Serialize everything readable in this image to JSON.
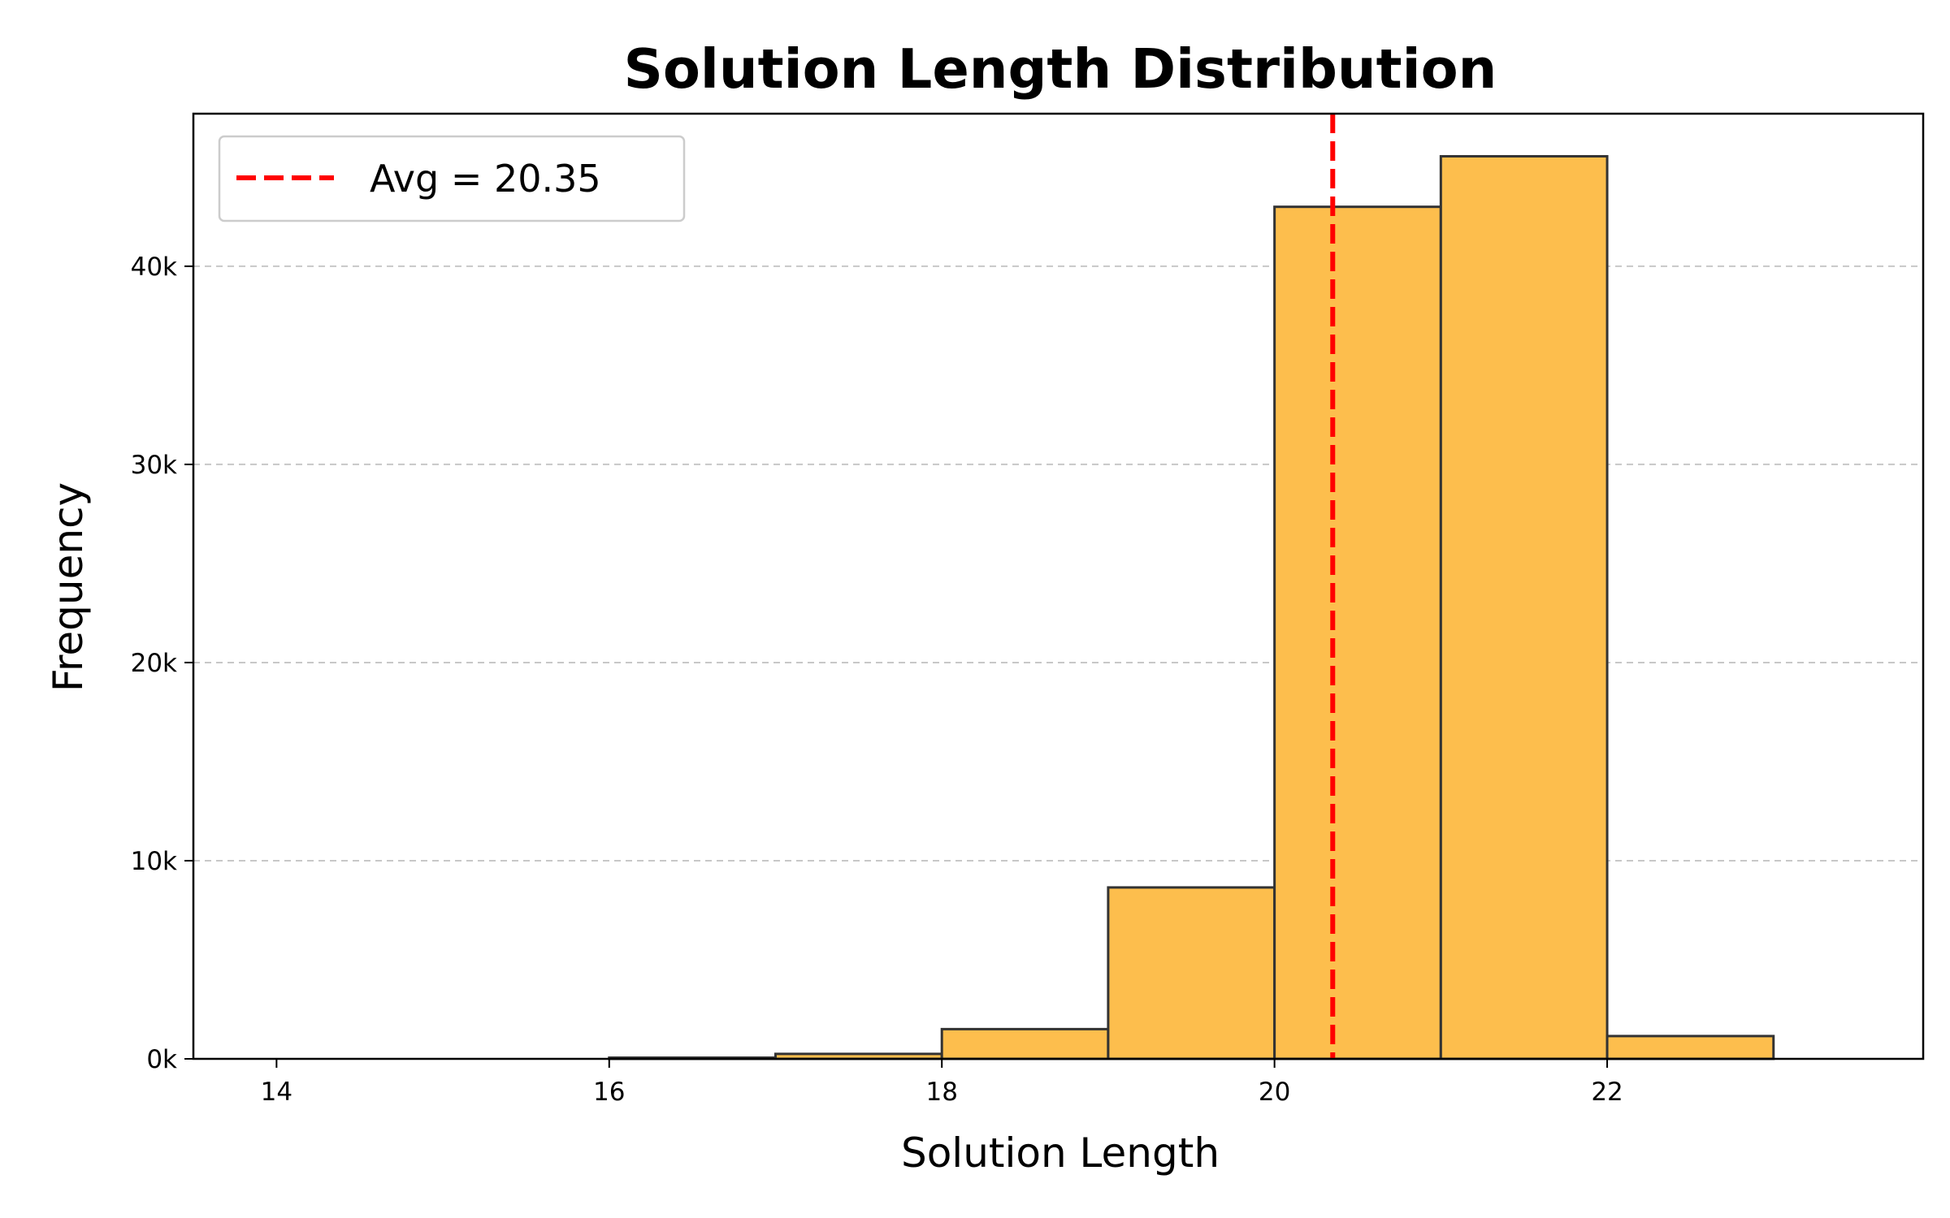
{
  "chart_data": {
    "type": "bar",
    "title": "Solution Length Distribution",
    "xlabel": "Solution Length",
    "ylabel": "Frequency",
    "xlim": [
      13.5,
      23.9
    ],
    "ylim": [
      0,
      47700
    ],
    "x_ticks": [
      14,
      16,
      18,
      20,
      22
    ],
    "y_ticks": [
      0,
      10000,
      20000,
      30000,
      40000
    ],
    "y_tick_labels": [
      "0k",
      "10k",
      "20k",
      "30k",
      "40k"
    ],
    "bins": [
      {
        "start": 14,
        "end": 15,
        "value": 0
      },
      {
        "start": 15,
        "end": 16,
        "value": 0
      },
      {
        "start": 16,
        "end": 17,
        "value": 60
      },
      {
        "start": 17,
        "end": 18,
        "value": 250
      },
      {
        "start": 18,
        "end": 19,
        "value": 1500
      },
      {
        "start": 19,
        "end": 20,
        "value": 8650
      },
      {
        "start": 20,
        "end": 21,
        "value": 43000
      },
      {
        "start": 21,
        "end": 22,
        "value": 45550
      },
      {
        "start": 22,
        "end": 23,
        "value": 1150
      }
    ],
    "average": 20.35,
    "legend": {
      "label": "Avg = 20.35",
      "placement": "top-left"
    },
    "grid": {
      "y": true,
      "x": false,
      "style": "dashed"
    },
    "colors": {
      "bar_fill": "#FDBE4D",
      "bar_edge": "#333333",
      "avg_line": "#FF0000",
      "grid": "#C8C8C8"
    }
  }
}
